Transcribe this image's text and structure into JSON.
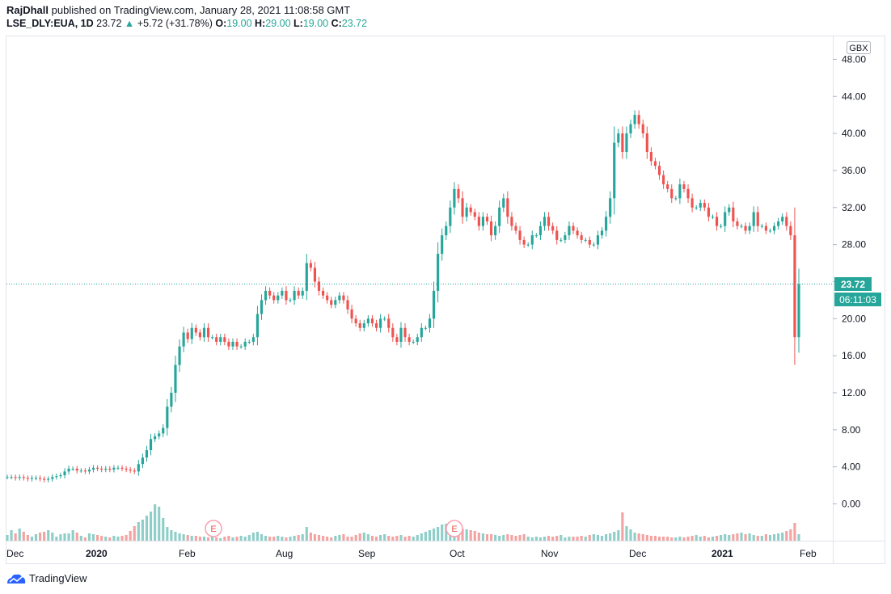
{
  "header": {
    "author": "RajDhall",
    "published_text": "published on TradingView.com, January 28, 2021 11:08:58 GMT",
    "symbol": "LSE_DLY:EUA, 1D",
    "last": "23.72",
    "change_arrow": "▲",
    "change": "+5.72 (+31.78%)",
    "o_label": "O:",
    "o_value": "19.00",
    "h_label": "H:",
    "h_value": "29.00",
    "l_label": "L:",
    "l_value": "19.00",
    "c_label": "C:",
    "c_value": "23.72"
  },
  "footer": {
    "brand": "TradingView"
  },
  "colors": {
    "up": "#26a69a",
    "down": "#ef5350",
    "up_vol": "#8fcec8",
    "down_vol": "#f3a3a1",
    "grid": "#e0e3eb",
    "text": "#131722",
    "accent": "#26a69a"
  },
  "chart_data": {
    "type": "candlestick",
    "currency_badge": "GBX",
    "y_ticks": [
      "48.00",
      "44.00",
      "40.00",
      "36.00",
      "32.00",
      "28.00",
      "24.00",
      "20.00",
      "16.00",
      "12.00",
      "8.00",
      "4.00",
      "0.00"
    ],
    "ylim": [
      0,
      48
    ],
    "x_labels": [
      "Dec",
      "2020",
      "Feb",
      "Aug",
      "Sep",
      "Oct",
      "Nov",
      "Dec",
      "2021",
      "Feb"
    ],
    "last_price_label": "23.72",
    "countdown_label": "06:11:03",
    "event_markers": [
      "E",
      "E"
    ],
    "closes": [
      2.9,
      2.9,
      2.8,
      2.9,
      2.8,
      2.7,
      2.8,
      2.8,
      2.7,
      2.6,
      2.7,
      2.9,
      3,
      3.1,
      3.5,
      3.8,
      3.8,
      3.6,
      3.6,
      3.5,
      3.7,
      3.9,
      3.8,
      3.7,
      3.8,
      3.7,
      3.9,
      3.9,
      3.8,
      3.7,
      3.6,
      3.5,
      4.3,
      5,
      5.8,
      7,
      7.3,
      7.6,
      8.2,
      10.5,
      12,
      15,
      17,
      18.5,
      17.8,
      19,
      18.5,
      18,
      19,
      18,
      18,
      17.5,
      18,
      17.5,
      17,
      17.5,
      17,
      17,
      17.5,
      17.5,
      18,
      20.5,
      22,
      23,
      22.5,
      22,
      22.5,
      23,
      22,
      22,
      23,
      22.5,
      23,
      26,
      25.5,
      24,
      23,
      22.5,
      22,
      21.5,
      22,
      22.5,
      22,
      21,
      20,
      19.5,
      19,
      19.5,
      20,
      19.5,
      19,
      20,
      20,
      19,
      18,
      17.5,
      19,
      18,
      17.5,
      17.5,
      18,
      19,
      19,
      20,
      23,
      27,
      29,
      30,
      32,
      34,
      33,
      31,
      32,
      31.5,
      31,
      30,
      31,
      30.5,
      29,
      30,
      32,
      33,
      31,
      30,
      29.5,
      28.5,
      28,
      28,
      29,
      29,
      30,
      31,
      30,
      29.5,
      28.5,
      28.5,
      29,
      30,
      29.5,
      29,
      28.5,
      28.5,
      28,
      28,
      29,
      29.5,
      31,
      33,
      39,
      40,
      38,
      40,
      41,
      42,
      41,
      40,
      38,
      37,
      36.5,
      35.5,
      34.5,
      34,
      33,
      33,
      34.5,
      34,
      33,
      32,
      32,
      32.5,
      32,
      31,
      31,
      30,
      30,
      31.5,
      32,
      30.5,
      30,
      30,
      29.5,
      30,
      31.5,
      30,
      30,
      29.5,
      29.5,
      30,
      30.5,
      31,
      30,
      29,
      18,
      23.72
    ],
    "volumes": [
      7,
      13,
      9,
      15,
      11,
      7,
      5,
      8,
      10,
      11,
      13,
      10,
      5,
      8,
      9,
      9,
      13,
      10,
      6,
      4,
      9,
      8,
      7,
      6,
      5,
      4,
      6,
      5,
      6,
      7,
      12,
      18,
      23,
      26,
      31,
      36,
      45,
      42,
      28,
      17,
      13,
      11,
      9,
      8,
      7,
      6,
      6,
      5,
      5,
      4,
      5,
      4,
      3,
      5,
      6,
      4,
      5,
      6,
      5,
      7,
      10,
      11,
      8,
      6,
      5,
      5,
      6,
      5,
      4,
      5,
      6,
      7,
      8,
      17,
      10,
      8,
      7,
      6,
      5,
      4,
      6,
      7,
      8,
      5,
      5,
      7,
      9,
      10,
      8,
      6,
      5,
      7,
      8,
      6,
      5,
      6,
      7,
      5,
      6,
      5,
      7,
      9,
      11,
      13,
      15,
      17,
      20,
      21,
      19,
      17,
      16,
      15,
      14,
      13,
      12,
      10,
      9,
      8,
      8,
      7,
      6,
      7,
      8,
      7,
      6,
      7,
      8,
      5,
      4,
      5,
      4,
      5,
      6,
      5,
      6,
      7,
      4,
      5,
      5,
      5,
      6,
      5,
      7,
      8,
      7,
      6,
      8,
      9,
      11,
      13,
      35,
      18,
      14,
      10,
      9,
      8,
      7,
      6,
      6,
      5,
      5,
      5,
      4,
      4,
      5,
      4,
      5,
      6,
      7,
      5,
      6,
      4,
      5,
      6,
      7,
      8,
      7,
      8,
      9,
      10,
      8,
      9,
      7,
      6,
      6,
      8,
      7,
      8,
      9,
      10,
      12,
      14,
      22,
      8
    ]
  }
}
